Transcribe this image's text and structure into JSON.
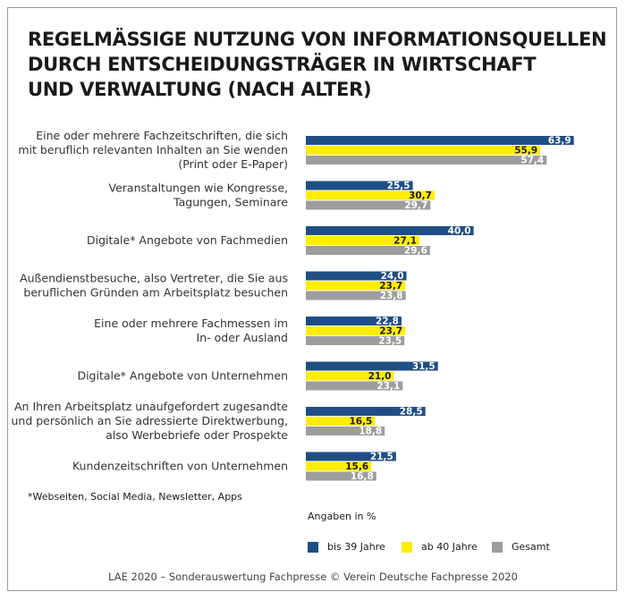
{
  "title_lines": [
    "REGELMÄSSIGE NUTZUNG VON INFORMATIONSQUELLEN",
    "DURCH ENTSCHEIDUNGSTRÄGER IN WIRTSCHAFT",
    "UND VERWALTUNG (NACH ALTER)"
  ],
  "footnote": "*Webseiten, Social Media, Newsletter, Apps",
  "units_note": "Angaben in %",
  "source": "LAE 2020 – Sonderauswertung Fachpresse © Verein Deutsche Fachpresse 2020",
  "colors": {
    "bis39": "#1f4e85",
    "ab40": "#ffed00",
    "gesamt": "#9d9d9d"
  },
  "chart_data": {
    "type": "bar",
    "orientation": "horizontal",
    "title": "REGELMÄSSIGE NUTZUNG VON INFORMATIONSQUELLEN DURCH ENTSCHEIDUNGSTRÄGER IN WIRTSCHAFT UND VERWALTUNG (NACH ALTER)",
    "unit": "Angaben in %",
    "legend_position": "bottom",
    "grid": false,
    "xlim": [
      0,
      65
    ],
    "categories": [
      [
        "Eine oder mehrere Fachzeitschriften, die sich",
        "mit beruflich relevanten Inhalten an Sie wenden",
        "(Print oder E-Paper)"
      ],
      [
        "Veranstaltungen wie Kongresse,",
        "Tagungen, Seminare"
      ],
      [
        "Digitale* Angebote von Fachmedien"
      ],
      [
        "Außendienstbesuche, also Vertreter, die Sie aus",
        "beruflichen Gründen am Arbeitsplatz besuchen"
      ],
      [
        "Eine oder mehrere Fachmessen im",
        "In- oder Ausland"
      ],
      [
        "Digitale* Angebote von Unternehmen"
      ],
      [
        "An Ihren Arbeitsplatz unaufgefordert zugesandte",
        "und persönlich an Sie adressierte Direktwerbung,",
        "also Werbebriefe oder Prospekte"
      ],
      [
        "Kundenzeitschriften von Unternehmen"
      ]
    ],
    "series": [
      {
        "name": "bis 39 Jahre",
        "color": "#1f4e85",
        "values": [
          63.9,
          25.5,
          40.0,
          24.0,
          22.8,
          31.5,
          28.5,
          21.5
        ],
        "labels": [
          "63,9",
          "25,5",
          "40,0",
          "24,0",
          "22,8",
          "31,5",
          "28,5",
          "21,5"
        ]
      },
      {
        "name": "ab 40 Jahre",
        "color": "#ffed00",
        "values": [
          55.9,
          30.7,
          27.1,
          23.7,
          23.7,
          21.0,
          16.5,
          15.6
        ],
        "labels": [
          "55,9",
          "30,7",
          "27,1",
          "23,7",
          "23,7",
          "21,0",
          "16,5",
          "15,6"
        ]
      },
      {
        "name": "Gesamt",
        "color": "#9d9d9d",
        "values": [
          57.4,
          29.7,
          29.6,
          23.8,
          23.5,
          23.1,
          18.8,
          16.8
        ],
        "labels": [
          "57,4",
          "29,7",
          "29,6",
          "23,8",
          "23,5",
          "23,1",
          "18,8",
          "16,8"
        ]
      }
    ]
  }
}
